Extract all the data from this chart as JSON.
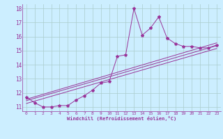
{
  "title": "",
  "xlabel": "Windchill (Refroidissement éolien,°C)",
  "ylabel": "",
  "background_color": "#cceeff",
  "line_color": "#993399",
  "grid_color": "#aacccc",
  "xlim": [
    -0.5,
    23.5
  ],
  "ylim": [
    10.7,
    18.3
  ],
  "yticks": [
    11,
    12,
    13,
    14,
    15,
    16,
    17,
    18
  ],
  "xticks": [
    0,
    1,
    2,
    3,
    4,
    5,
    6,
    7,
    8,
    9,
    10,
    11,
    12,
    13,
    14,
    15,
    16,
    17,
    18,
    19,
    20,
    21,
    22,
    23
  ],
  "series": [
    11.7,
    11.3,
    11.0,
    11.0,
    11.1,
    11.1,
    11.5,
    11.8,
    12.2,
    12.7,
    12.8,
    14.6,
    14.7,
    18.0,
    16.1,
    16.6,
    17.4,
    15.9,
    15.5,
    15.3,
    15.3,
    15.2,
    15.2,
    15.4
  ],
  "linear_lines": [
    {
      "x": [
        0,
        23
      ],
      "y": [
        11.55,
        15.55
      ]
    },
    {
      "x": [
        0,
        23
      ],
      "y": [
        11.45,
        15.35
      ]
    },
    {
      "x": [
        0,
        23
      ],
      "y": [
        11.25,
        15.15
      ]
    }
  ]
}
